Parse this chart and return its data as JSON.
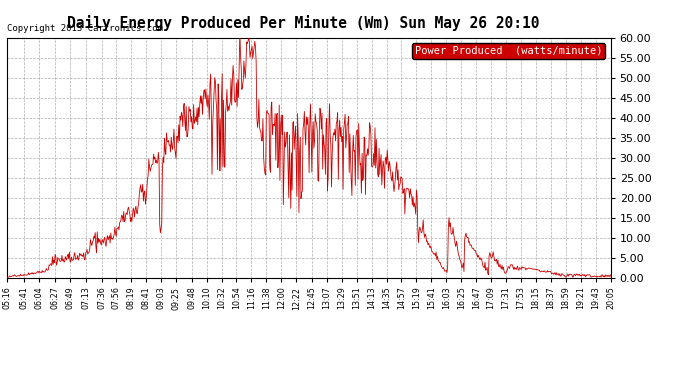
{
  "title": "Daily Energy Produced Per Minute (Wm) Sun May 26 20:10",
  "copyright": "Copyright 2013 Cartronics.com",
  "legend_label": "Power Produced  (watts/minute)",
  "legend_bg": "#cc0000",
  "legend_fg": "#ffffff",
  "line_color": "#cc0000",
  "bg_color": "#ffffff",
  "grid_color": "#999999",
  "ylim": [
    0,
    60
  ],
  "yticks": [
    0,
    5,
    10,
    15,
    20,
    25,
    30,
    35,
    40,
    45,
    50,
    55,
    60
  ],
  "figsize": [
    6.9,
    3.75
  ],
  "dpi": 100,
  "xtick_labels": [
    "05:16",
    "05:41",
    "06:04",
    "06:27",
    "06:49",
    "07:13",
    "07:36",
    "07:56",
    "08:19",
    "08:41",
    "09:03",
    "09:25",
    "09:48",
    "10:10",
    "10:32",
    "10:54",
    "11:16",
    "11:38",
    "12:00",
    "12:22",
    "12:45",
    "13:07",
    "13:29",
    "13:51",
    "14:13",
    "14:35",
    "14:57",
    "15:19",
    "15:41",
    "16:03",
    "16:25",
    "16:47",
    "17:09",
    "17:31",
    "17:53",
    "18:15",
    "18:37",
    "18:59",
    "19:21",
    "19:43",
    "20:05"
  ]
}
